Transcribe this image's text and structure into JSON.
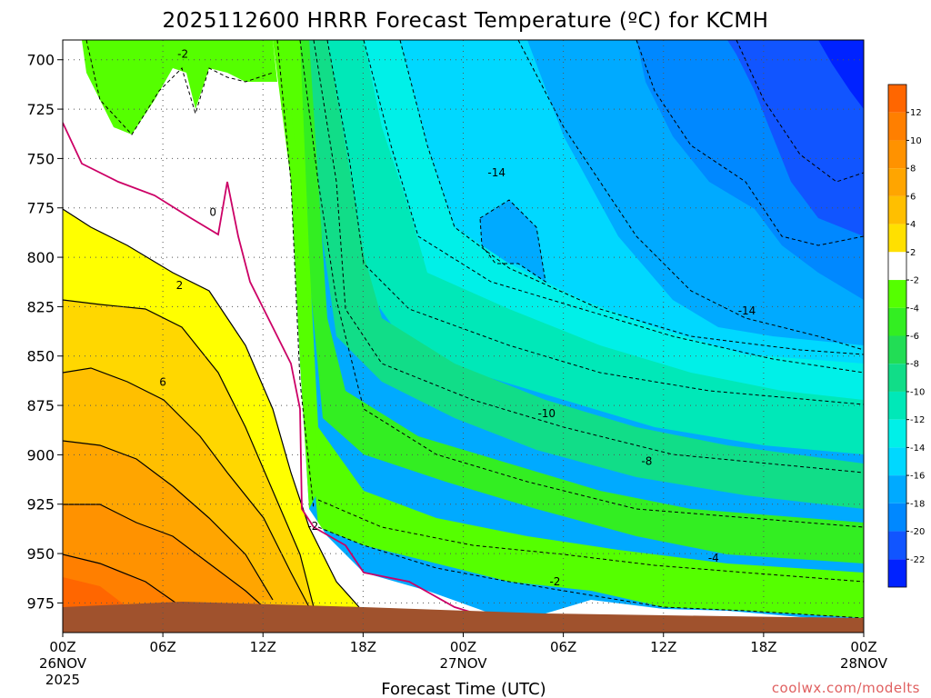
{
  "chart_data": {
    "type": "heatmap",
    "title": "2025112600 HRRR Forecast Temperature (ºC) for KCMH",
    "xlabel": "Forecast Time (UTC)",
    "ylabel": "",
    "y_axis": {
      "ticks": [
        700,
        725,
        750,
        775,
        800,
        825,
        850,
        875,
        900,
        925,
        950,
        975
      ],
      "range": [
        690,
        990
      ],
      "inverted": true
    },
    "x_axis": {
      "ticks": [
        {
          "hour": 0,
          "label": "00Z",
          "date": "26NOV",
          "year": "2025"
        },
        {
          "hour": 6,
          "label": "06Z",
          "date": "",
          "year": ""
        },
        {
          "hour": 12,
          "label": "12Z",
          "date": "",
          "year": ""
        },
        {
          "hour": 18,
          "label": "18Z",
          "date": "",
          "year": ""
        },
        {
          "hour": 24,
          "label": "00Z",
          "date": "27NOV",
          "year": ""
        },
        {
          "hour": 30,
          "label": "06Z",
          "date": "",
          "year": ""
        },
        {
          "hour": 36,
          "label": "12Z",
          "date": "",
          "year": ""
        },
        {
          "hour": 42,
          "label": "18Z",
          "date": "",
          "year": ""
        },
        {
          "hour": 48,
          "label": "00Z",
          "date": "28NOV",
          "year": ""
        }
      ],
      "range": [
        0,
        48
      ]
    },
    "grid": true,
    "colorbar": {
      "labels": [
        12,
        10,
        8,
        6,
        4,
        2,
        -2,
        -4,
        -6,
        -8,
        -10,
        -12,
        -14,
        -16,
        -18,
        -20,
        -22
      ],
      "colors": [
        "#ff6600",
        "#ff7f00",
        "#ff9200",
        "#ffa500",
        "#ffbf00",
        "#ffe000",
        "#ffffff",
        "#55ff00",
        "#33ee22",
        "#22dd55",
        "#11dd88",
        "#00e8b8",
        "#00f0e8",
        "#00d8ff",
        "#00aaff",
        "#0088ff",
        "#1155ff",
        "#0022ff"
      ]
    },
    "contour_labels": [
      {
        "value": "-2",
        "hour": 7.2,
        "p": 699
      },
      {
        "value": "0",
        "hour": 9.0,
        "p": 779
      },
      {
        "value": "2",
        "hour": 7.0,
        "p": 816
      },
      {
        "value": "6",
        "hour": 6.0,
        "p": 865
      },
      {
        "value": "-14",
        "hour": 26.0,
        "p": 759
      },
      {
        "value": "-14",
        "hour": 41.0,
        "p": 829
      },
      {
        "value": "-10",
        "hour": 29.0,
        "p": 881
      },
      {
        "value": "-8",
        "hour": 35.0,
        "p": 905
      },
      {
        "value": "-4",
        "hour": 39.0,
        "p": 954
      },
      {
        "value": "-2",
        "hour": 15.0,
        "p": 938
      },
      {
        "value": "-2",
        "hour": 29.5,
        "p": 966
      }
    ]
  },
  "footer": {
    "credit": "coolwx.com/modelts"
  }
}
